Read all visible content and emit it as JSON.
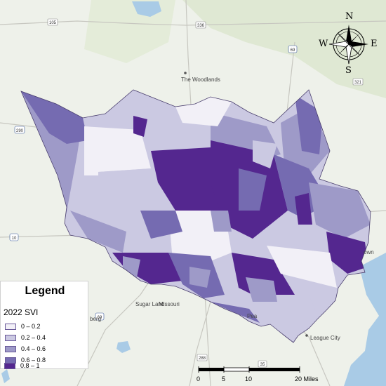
{
  "places": [
    {
      "name": "The Woodlands"
    },
    {
      "name": "Sugar Land"
    },
    {
      "name": "Missouri"
    },
    {
      "name": "League City"
    },
    {
      "name": "Pea"
    },
    {
      "name": "berg"
    },
    {
      "name": "own"
    }
  ],
  "highways": [
    "105",
    "336",
    "69",
    "321",
    "290",
    "10",
    "69",
    "288",
    "35"
  ],
  "legend": {
    "title": "Legend",
    "subtitle": "2022 SVI",
    "classes": [
      {
        "label": "0 – 0.2",
        "color": "#f2f0f7"
      },
      {
        "label": "0.2 – 0.4",
        "color": "#cbc9e2"
      },
      {
        "label": "0.4 – 0.6",
        "color": "#9e9ac8"
      },
      {
        "label": "0.6 – 0.8",
        "color": "#756bb1"
      },
      {
        "label": "0.8 – 1",
        "color": "#54278f"
      }
    ]
  },
  "scalebar": {
    "ticks": [
      "0",
      "5",
      "10",
      "20 Miles"
    ]
  },
  "compass": {
    "n": "N",
    "s": "S",
    "e": "E",
    "w": "W"
  },
  "colors": {
    "background": "#eef1ea",
    "water": "#a9cbe6",
    "green": "#dfe8d3"
  }
}
